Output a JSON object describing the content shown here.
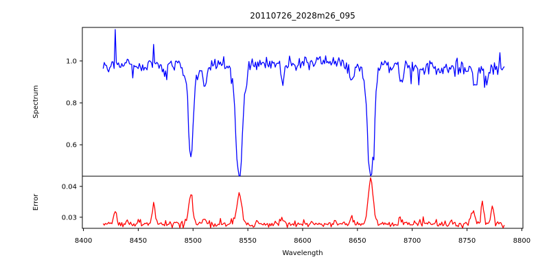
{
  "chart_data": {
    "type": "line",
    "title": "20110726_2028m26_095",
    "xlabel": "Wavelength",
    "xlim": [
      8399,
      8801
    ],
    "xtick_values": [
      8400,
      8450,
      8500,
      8550,
      8600,
      8650,
      8700,
      8750,
      8800
    ],
    "xtick_labels": [
      "8400",
      "8450",
      "8500",
      "8550",
      "8600",
      "8650",
      "8700",
      "8750",
      "8800"
    ],
    "x_start": 8418,
    "x_end": 8784,
    "x_step": 1,
    "grid": false,
    "legend": "none",
    "frame_color": "#000000",
    "panels": [
      {
        "name": "spectrum-panel",
        "ylabel": "Spectrum",
        "ylim": [
          0.45,
          1.16
        ],
        "ytick_values": [
          0.6,
          0.8,
          1.0
        ],
        "ytick_labels": [
          "0.6",
          "0.8",
          "1.0"
        ],
        "key_values": {
          "continuum_level": 0.98,
          "absorption_line_centers": [
            8498,
            8542,
            8662
          ],
          "absorption_line_minima": [
            0.61,
            0.49,
            0.49
          ],
          "upward_spike_x": 8429,
          "upward_spike_value": 1.13
        },
        "series": [
          {
            "name": "spectrum",
            "color": "#0000ff",
            "line_width": 1.3,
            "baseline": 0.978,
            "noise_sigma": 0.018,
            "burst_prob": 0.05,
            "burst_scale": -0.09,
            "seed": 13,
            "gaussians": [
              [
                8498.0,
                -0.37,
                2.2
              ],
              [
                8498.0,
                -0.05,
                5.0
              ],
              [
                8542.1,
                -0.5,
                2.8
              ],
              [
                8542.1,
                -0.06,
                6.0
              ],
              [
                8662.1,
                -0.5,
                2.8
              ],
              [
                8662.1,
                -0.06,
                6.0
              ],
              [
                8511.0,
                -0.1,
                1.8
              ],
              [
                8582.0,
                -0.09,
                1.5
              ],
              [
                8645.0,
                -0.08,
                1.8
              ],
              [
                8690.0,
                -0.09,
                1.3
              ],
              [
                8758.0,
                -0.1,
                1.5
              ],
              [
                8768.0,
                -0.07,
                1.5
              ],
              [
                8602.0,
                0.018,
                35.0
              ],
              [
                8745.0,
                -0.012,
                45.0
              ]
            ],
            "spikes": [
              [
                8429,
                0.15
              ],
              [
                8464,
                0.09
              ],
              [
                8780,
                0.07
              ]
            ]
          }
        ]
      },
      {
        "name": "error-panel",
        "ylabel": "Error",
        "ylim": [
          0.0264,
          0.0433
        ],
        "ytick_values": [
          0.03,
          0.04
        ],
        "ytick_labels": [
          "0.03",
          "0.04"
        ],
        "key_values": {
          "baseline_level": 0.028,
          "peak_centers": [
            8429,
            8464,
            8498,
            8542,
            8662,
            8755,
            8764,
            8773
          ],
          "peak_values": [
            0.032,
            0.034,
            0.037,
            0.038,
            0.042,
            0.033,
            0.035,
            0.034
          ]
        },
        "series": [
          {
            "name": "error",
            "color": "#ff0000",
            "line_width": 1.3,
            "baseline": 0.0278,
            "noise_sigma": 0.0005,
            "burst_prob": 0.1,
            "burst_scale": 0.0016,
            "seed": 99,
            "gaussians": [
              [
                8429.0,
                0.0045,
                1.2
              ],
              [
                8464.0,
                0.0062,
                1.2
              ],
              [
                8498.0,
                0.0095,
                1.8
              ],
              [
                8511.0,
                0.002,
                1.5
              ],
              [
                8542.1,
                0.01,
                2.2
              ],
              [
                8582.0,
                0.0013,
                1.5
              ],
              [
                8645.0,
                0.002,
                1.8
              ],
              [
                8662.1,
                0.0143,
                2.2
              ],
              [
                8690.0,
                0.0012,
                1.5
              ],
              [
                8755.0,
                0.0048,
                1.8
              ],
              [
                8764.0,
                0.0068,
                1.2
              ],
              [
                8773.0,
                0.0058,
                1.2
              ],
              [
                8786.0,
                -0.001,
                3.0
              ]
            ],
            "spikes": []
          }
        ]
      }
    ]
  }
}
